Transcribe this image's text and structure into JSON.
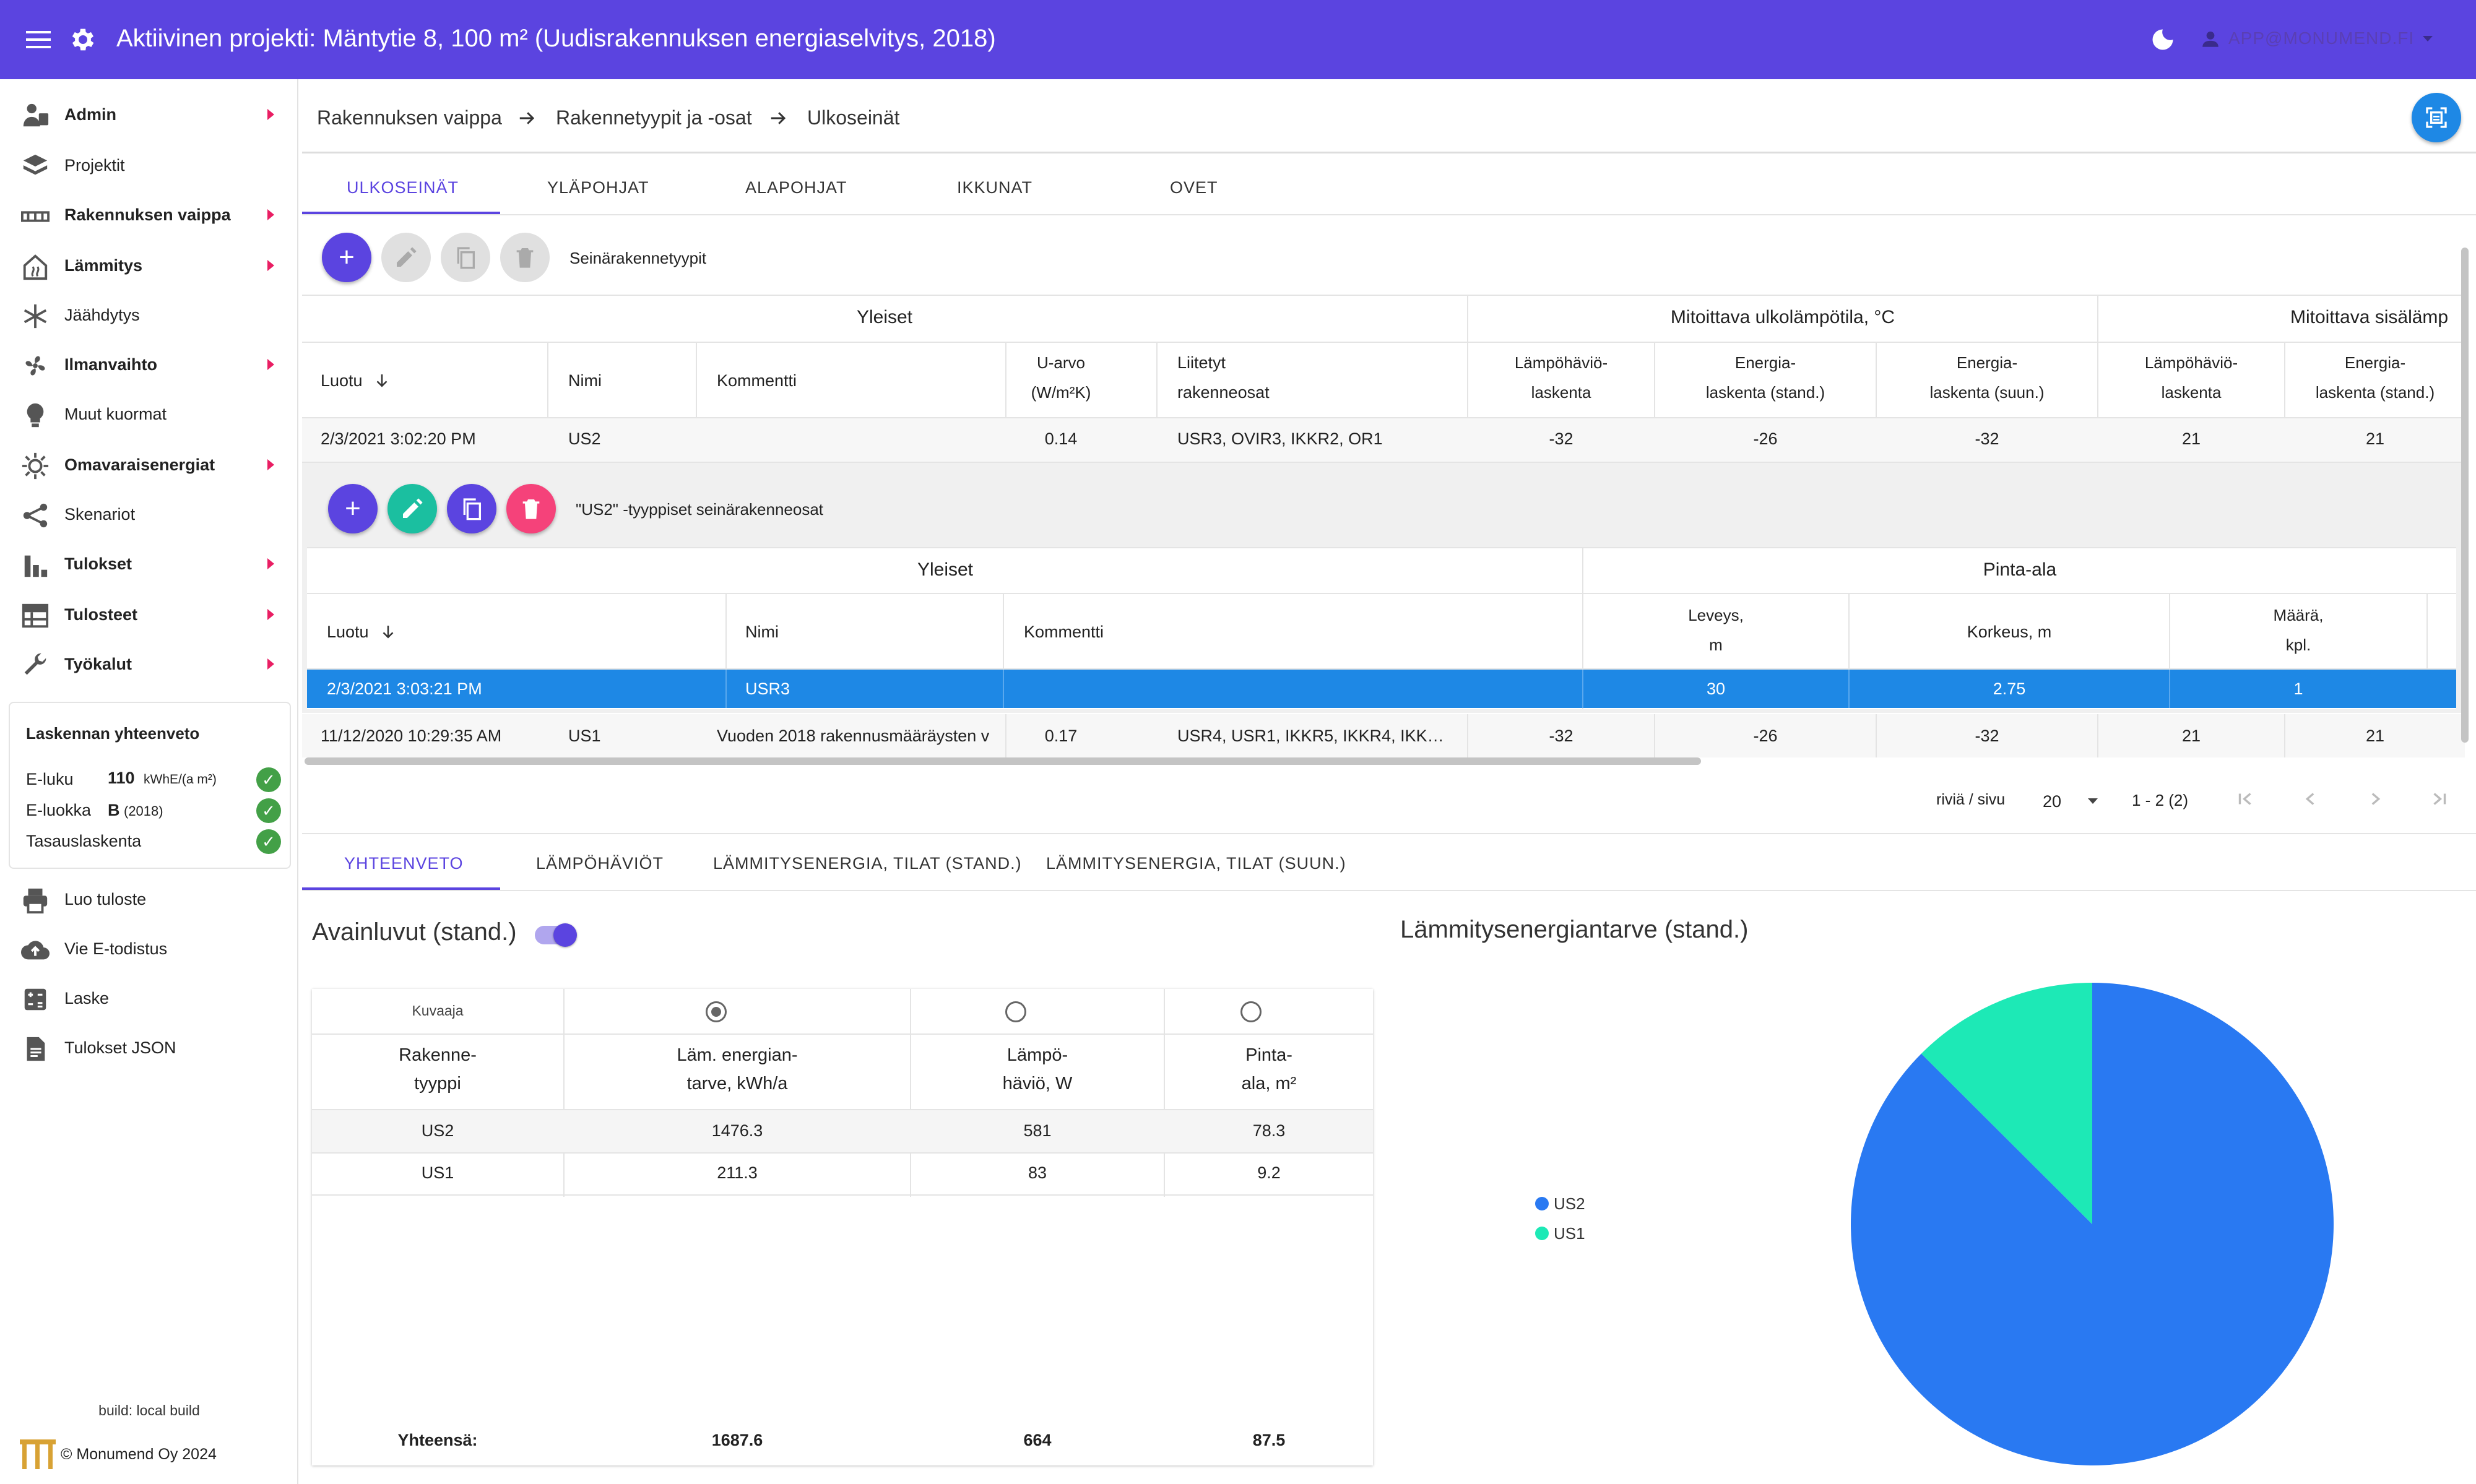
{
  "app": {
    "title": "Aktiivinen projekti: Mäntytie 8, 100 m² (Uudisrakennuksen energiaselvitys, 2018)",
    "user": "APP@MONUMEND.FI",
    "accent": "#5b44e0"
  },
  "sidebar": {
    "items": [
      {
        "label": "Admin",
        "icon": "admin-icon",
        "bold": true,
        "arrow": true
      },
      {
        "label": "Projektit",
        "icon": "layers-icon",
        "bold": false,
        "arrow": false
      },
      {
        "label": "Rakennuksen vaippa",
        "icon": "wall-icon",
        "bold": true,
        "arrow": true
      },
      {
        "label": "Lämmitys",
        "icon": "house-heat-icon",
        "bold": true,
        "arrow": true
      },
      {
        "label": "Jäähdytys",
        "icon": "snowflake-icon",
        "bold": false,
        "arrow": false
      },
      {
        "label": "Ilmanvaihto",
        "icon": "fan-icon",
        "bold": true,
        "arrow": true
      },
      {
        "label": "Muut kuormat",
        "icon": "bulb-icon",
        "bold": false,
        "arrow": false
      },
      {
        "label": "Omavaraisenergiat",
        "icon": "sun-icon",
        "bold": true,
        "arrow": true
      },
      {
        "label": "Skenariot",
        "icon": "share-icon",
        "bold": false,
        "arrow": false
      },
      {
        "label": "Tulokset",
        "icon": "bar-chart-icon",
        "bold": true,
        "arrow": true
      },
      {
        "label": "Tulosteet",
        "icon": "table-icon",
        "bold": true,
        "arrow": true
      },
      {
        "label": "Työkalut",
        "icon": "wrench-icon",
        "bold": true,
        "arrow": true
      }
    ],
    "summary": {
      "title": "Laskennan yhteenveto",
      "eluku_label": "E-luku",
      "eluku_value": "110",
      "eluku_unit": "kWhE/(a m²)",
      "eluokka_label": "E-luokka",
      "eluokka_value": "B",
      "eluokka_year": "(2018)",
      "tasaus_label": "Tasauslaskenta"
    },
    "actions": [
      {
        "label": "Luo tuloste",
        "icon": "printer-icon"
      },
      {
        "label": "Vie E-todistus",
        "icon": "cloud-upload-icon"
      },
      {
        "label": "Laske",
        "icon": "calculator-icon"
      },
      {
        "label": "Tulokset JSON",
        "icon": "document-icon"
      }
    ],
    "build": "build: local build",
    "copyright": "© Monumend Oy 2024"
  },
  "breadcrumb": [
    "Rakennuksen vaippa",
    "Rakennetyypit ja -osat",
    "Ulkoseinät"
  ],
  "tabs": [
    "ULKOSEINÄT",
    "YLÄPOHJAT",
    "ALAPOHJAT",
    "IKKUNAT",
    "OVET"
  ],
  "types_table": {
    "title": "Seinärakennetyypit",
    "groups": [
      "Yleiset",
      "Mitoittava ulkolämpötila, °C",
      "Mitoittava sisälämp"
    ],
    "columns": {
      "luotu": "Luotu",
      "nimi": "Nimi",
      "kommentti": "Kommentti",
      "uarvo": [
        "U-arvo",
        "(W/m²K)"
      ],
      "liitetyt": [
        "Liitetyt",
        "rakenneosat"
      ],
      "lh": [
        "Lämpöhäviö-",
        "laskenta"
      ],
      "es": [
        "Energia-",
        "laskenta (stand.)"
      ],
      "esu": [
        "Energia-",
        "laskenta (suun.)"
      ],
      "lh2": [
        "Lämpöhäviö-",
        "laskenta"
      ],
      "es2": [
        "Energia-",
        "laskenta (stand.)"
      ]
    },
    "rows": [
      {
        "luotu": "2/3/2021 3:02:20 PM",
        "nimi": "US2",
        "kommentti": "",
        "uarvo": "0.14",
        "liitetyt": "USR3, OVIR3, IKKR2, OR1",
        "lh": "-32",
        "es": "-26",
        "esu": "-32",
        "lh2": "21",
        "es2": "21"
      },
      {
        "luotu": "11/12/2020 10:29:35 AM",
        "nimi": "US1",
        "kommentti": "Vuoden 2018 rakennusmääräysten v",
        "uarvo": "0.17",
        "liitetyt": "USR4, USR1, IKKR5, IKKR4, IKK…",
        "lh": "-32",
        "es": "-26",
        "esu": "-32",
        "lh2": "21",
        "es2": "21"
      }
    ]
  },
  "parts_table": {
    "title": "\"US2\" -tyyppiset seinärakenneosat",
    "groups": [
      "Yleiset",
      "Pinta-ala"
    ],
    "columns": {
      "luotu": "Luotu",
      "nimi": "Nimi",
      "kommentti": "Kommentti",
      "leveys": [
        "Leveys,",
        "m"
      ],
      "korkeus": "Korkeus, m",
      "maara": [
        "Määrä,",
        "kpl."
      ]
    },
    "rows": [
      {
        "luotu": "2/3/2021 3:03:21 PM",
        "nimi": "USR3",
        "kommentti": "",
        "leveys": "30",
        "korkeus": "2.75",
        "maara": "1"
      }
    ]
  },
  "pagination": {
    "rows_label": "riviä / sivu",
    "per_page": "20",
    "range": "1 - 2 (2)"
  },
  "bottom_tabs": [
    "YHTEENVETO",
    "LÄMPÖHÄVIÖT",
    "LÄMMITYSENERGIA, TILAT (STAND.)",
    "LÄMMITYSENERGIA, TILAT (SUUN.)"
  ],
  "keyfigs": {
    "title": "Avainluvut (stand.)",
    "kuvaaja": "Kuvaaja",
    "columns": [
      [
        "Rakenne-",
        "tyyppi"
      ],
      [
        "Läm. energian-",
        "tarve, kWh/a"
      ],
      [
        "Lämpö-",
        "häviö, W"
      ],
      [
        "Pinta-",
        "ala, m²"
      ]
    ],
    "rows": [
      {
        "type": "US2",
        "energy": "1476.3",
        "loss": "581",
        "area": "78.3"
      },
      {
        "type": "US1",
        "energy": "211.3",
        "loss": "83",
        "area": "9.2"
      }
    ],
    "totals": {
      "label": "Yhteensä:",
      "energy": "1687.6",
      "loss": "664",
      "area": "87.5"
    }
  },
  "chart_data": {
    "type": "pie",
    "title": "Lämmitysenergiantarve (stand.)",
    "categories": [
      "US2",
      "US1"
    ],
    "values": [
      1476.3,
      211.3
    ],
    "colors": [
      "#2979f2",
      "#1de9b6"
    ],
    "legend": "left"
  }
}
